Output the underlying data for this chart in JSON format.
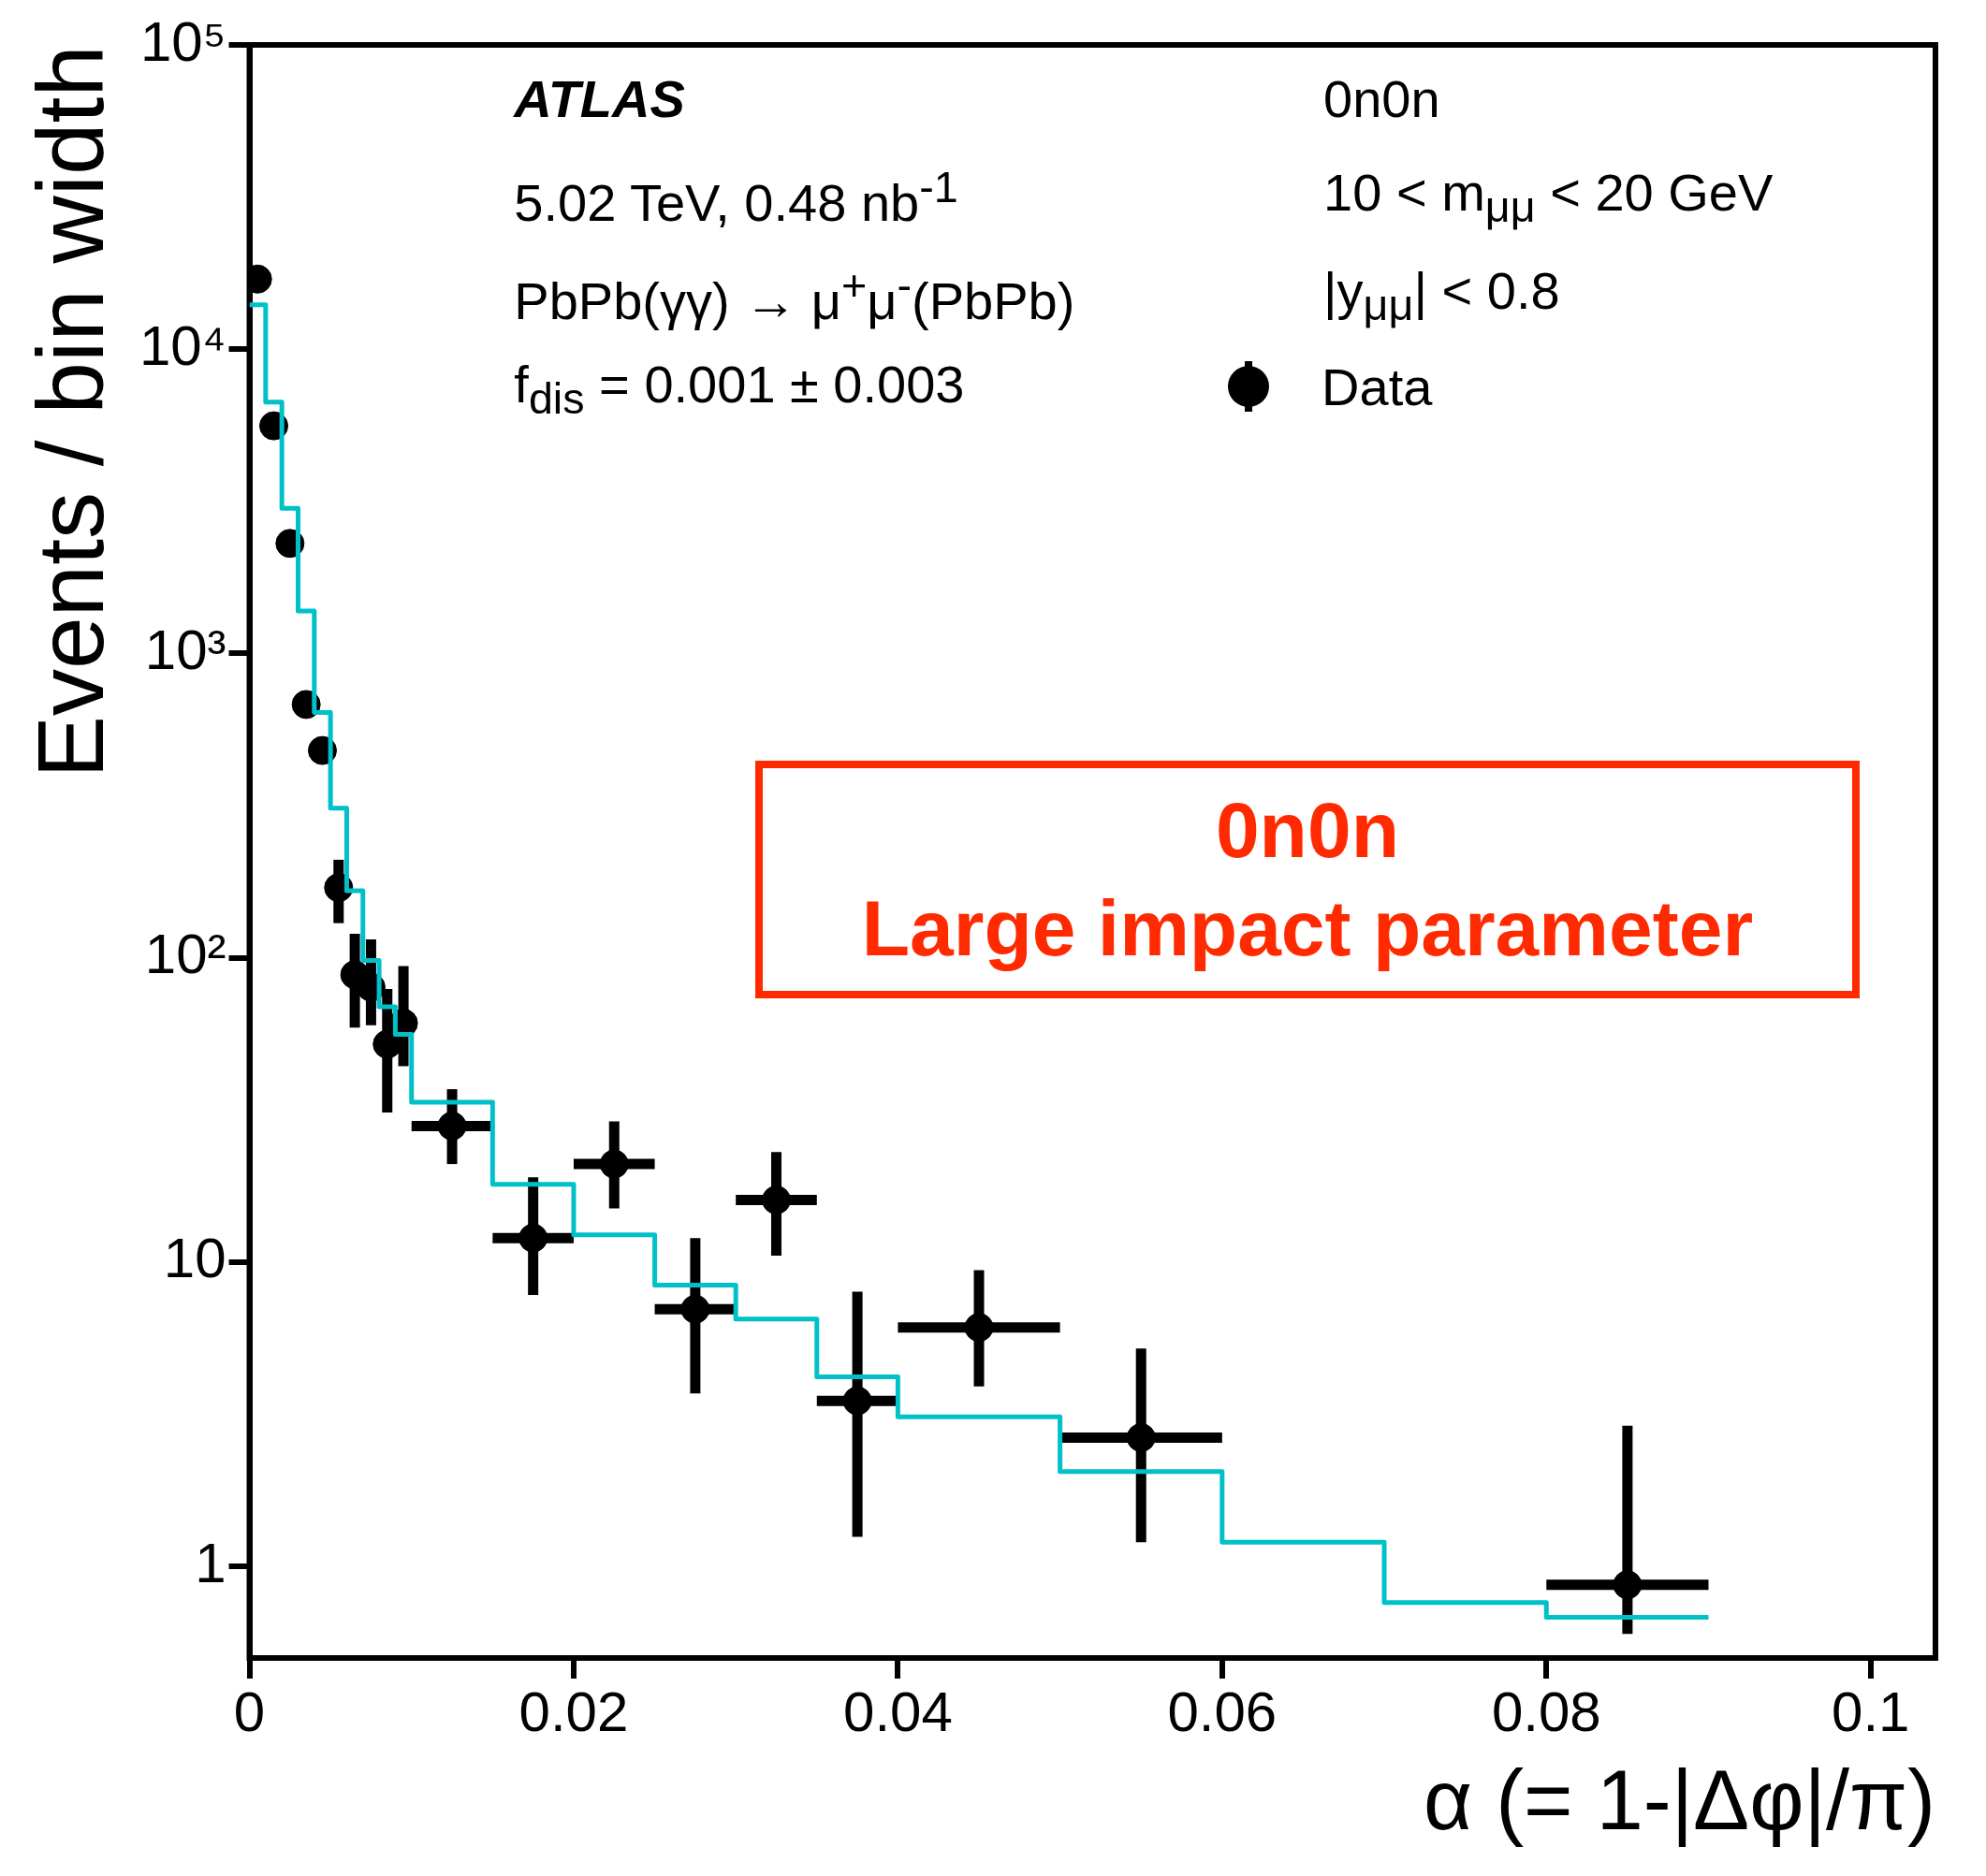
{
  "chart_data": {
    "type": "scatter",
    "xlabel": "α (= 1-|Δφ|/π)",
    "ylabel": "Events / bin width",
    "xlim": [
      0,
      0.104
    ],
    "xticks": [
      0,
      0.02,
      0.04,
      0.06,
      0.08,
      0.1
    ],
    "ylim": [
      0.5,
      100000
    ],
    "yticks": [
      {
        "value": 1,
        "label": "1"
      },
      {
        "value": 10,
        "label": "10"
      },
      {
        "value": 100,
        "label": "10²"
      },
      {
        "value": 1000,
        "label": "10³"
      },
      {
        "value": 10000,
        "label": "10⁴"
      },
      {
        "value": 100000,
        "label": "10⁵"
      }
    ],
    "log": "y",
    "legend": "top right",
    "marker": "circle",
    "annotations": [
      "ATLAS",
      "5.02 TeV, 0.48 nb$^{-1}$",
      "PbPb(γγ) → μ$^{+}$μ$^{-}$(PbPb)",
      "f$_{dis}$ = 0.001 ± 0.003",
      "0n0n",
      "10 < m$_{μμ}$ < 20 GeV",
      "|y$_{μμ}$| < 0.8",
      "0n0n",
      "Large impact parameter"
    ],
    "series": [
      {
        "type": "scatter",
        "name": "Data",
        "color": "#000000",
        "x": [
          0.0005,
          0.0015,
          0.0025,
          0.0035,
          0.0045,
          0.0055,
          0.0065,
          0.0075,
          0.0085,
          0.0095,
          0.0125,
          0.0175,
          0.0225,
          0.0275,
          0.0325,
          0.0375,
          0.045,
          0.055,
          0.085
        ],
        "values": [
          17000,
          5600,
          2300,
          680,
          480,
          170,
          88,
          80,
          52,
          61,
          28,
          12,
          21,
          7.0,
          16,
          3.5,
          6.1,
          2.65,
          0.87
        ],
        "errors": [
          null,
          null,
          null,
          null,
          null,
          [
            130,
            210
          ],
          [
            59,
            120
          ],
          [
            60,
            115
          ],
          [
            31,
            79
          ],
          [
            44,
            94
          ],
          [
            21,
            37
          ],
          [
            7.8,
            19
          ],
          [
            15,
            29
          ],
          [
            3.7,
            12
          ],
          [
            10.5,
            23
          ],
          [
            1.25,
            8
          ],
          [
            3.9,
            9.4
          ],
          [
            1.2,
            5.2
          ],
          [
            0.6,
            2.9
          ]
        ],
        "xerrors": [
          0.0005,
          0.0005,
          0.0005,
          0.0005,
          0.0005,
          0.0005,
          0.0005,
          0.0005,
          0.0005,
          0.0005,
          0.0025,
          0.0025,
          0.0025,
          0.0025,
          0.0025,
          0.0025,
          0.005,
          0.005,
          0.005
        ]
      },
      {
        "type": "histogram",
        "color": "#00c0c8",
        "bins": [
          0,
          0.001,
          0.002,
          0.003,
          0.004,
          0.005,
          0.006,
          0.007,
          0.008,
          0.009,
          0.01,
          0.015,
          0.02,
          0.025,
          0.03,
          0.035,
          0.04,
          0.05,
          0.06,
          0.07,
          0.08,
          0.09
        ],
        "values": [
          14000,
          6700,
          3000,
          1380,
          640,
          310,
          166,
          98,
          69,
          56,
          33.5,
          18,
          12.3,
          8.4,
          6.5,
          4.2,
          3.1,
          2.05,
          1.2,
          0.76,
          0.68
        ]
      }
    ]
  }
}
